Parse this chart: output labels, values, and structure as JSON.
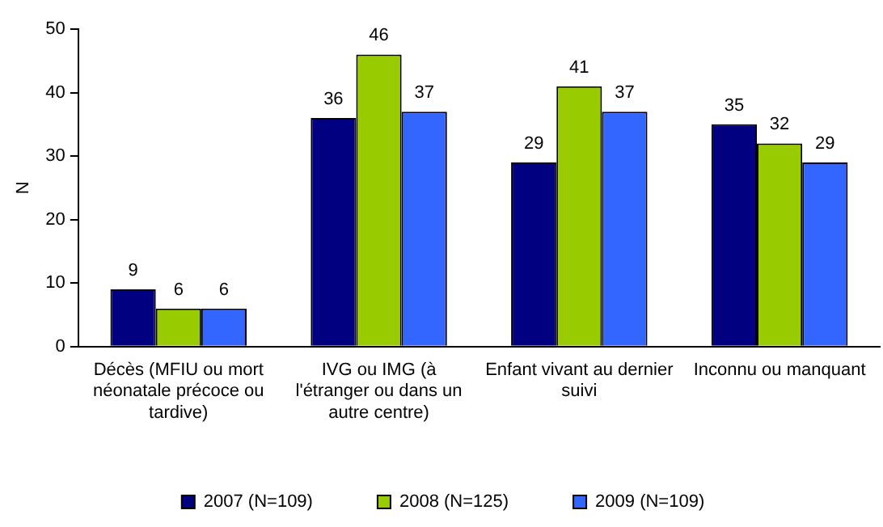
{
  "chart_data": {
    "type": "bar",
    "ylabel": "N",
    "categories": [
      "Décès (MFIU ou mort néonatale précoce ou tardive)",
      "IVG ou IMG (à l'étranger ou dans un autre centre)",
      "Enfant vivant au dernier suivi",
      "Inconnu ou manquant"
    ],
    "series": [
      {
        "name": "2007 (N=109)",
        "color": "#000080",
        "values": [
          9,
          36,
          29,
          35
        ]
      },
      {
        "name": "2008 (N=125)",
        "color": "#99cc00",
        "values": [
          6,
          46,
          41,
          32
        ]
      },
      {
        "name": "2009 (N=109)",
        "color": "#3366ff",
        "values": [
          6,
          37,
          37,
          29
        ]
      }
    ],
    "ylim": [
      0,
      50
    ],
    "yticks": [
      0,
      10,
      20,
      30,
      40,
      50
    ],
    "grid": false,
    "legend": "bottom",
    "data_labels": true
  }
}
